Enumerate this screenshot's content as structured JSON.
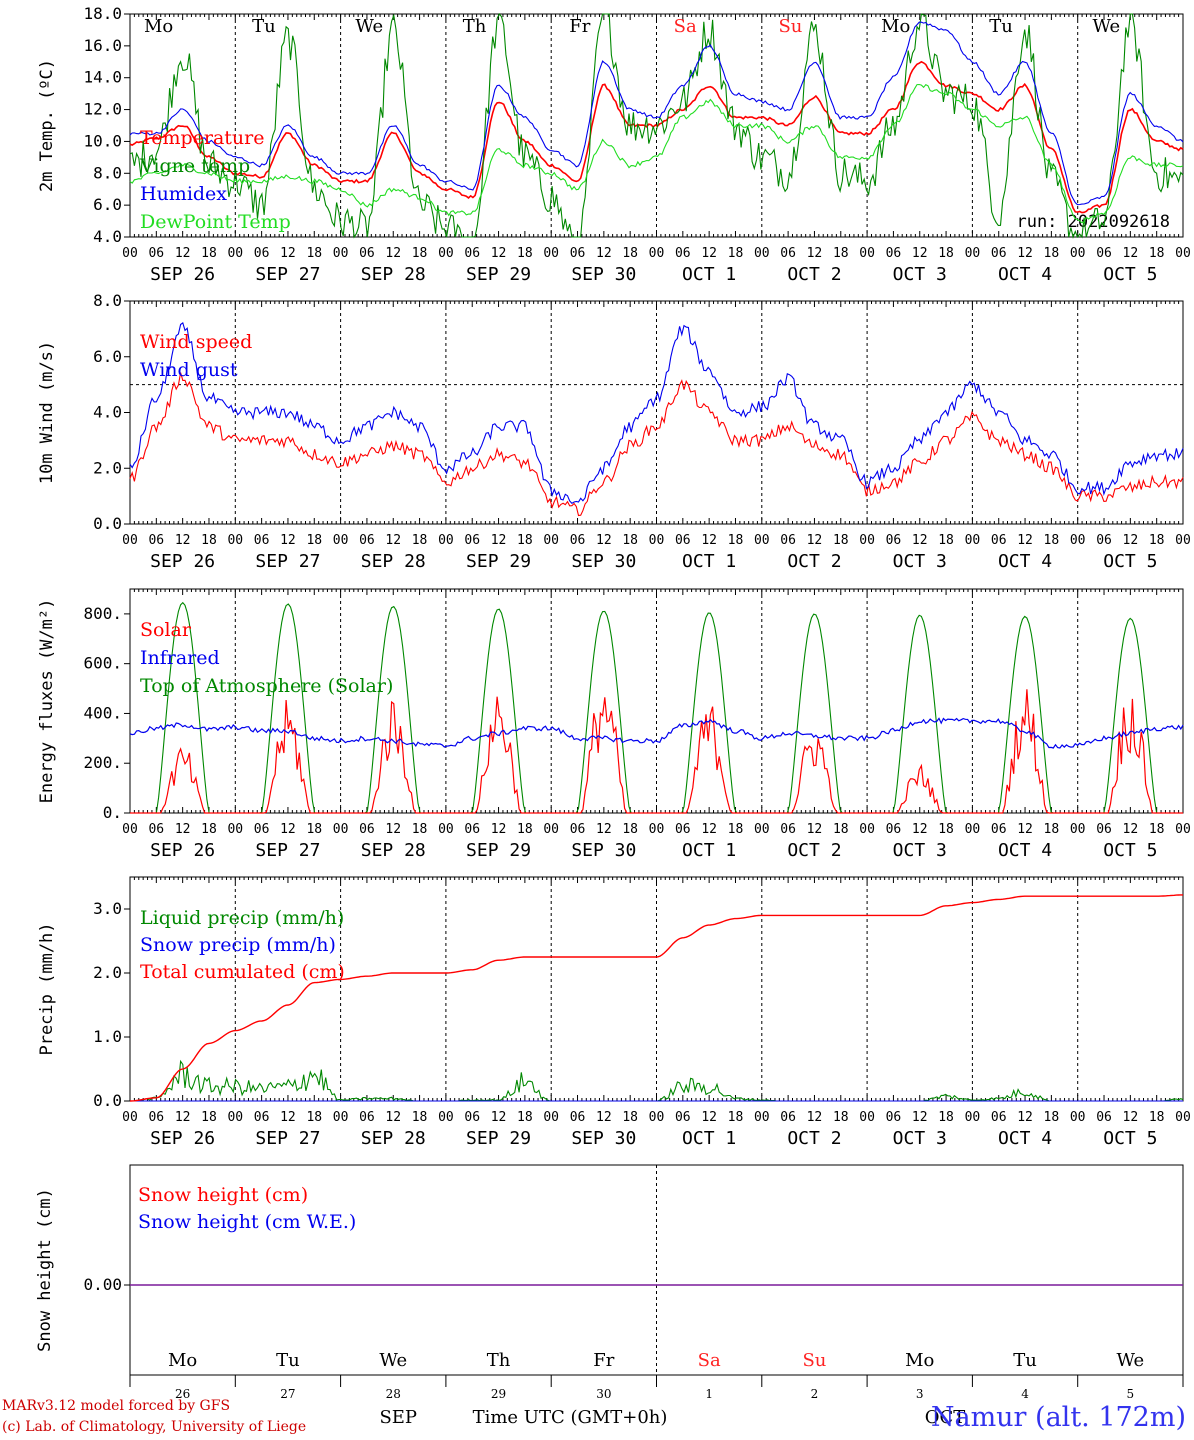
{
  "run_label": "run: 2022092618",
  "footer": {
    "credit_line1": "MARv3.12 model forced by GFS",
    "credit_line2": "(c) Lab. of Climatology, University of Liege",
    "month_label": "SEP",
    "oct_label": "OCT",
    "time_axis_label": "Time UTC (GMT+0h)",
    "station": "Namur (alt. 172m)"
  },
  "hour_ticks": [
    "00",
    "06",
    "12",
    "18"
  ],
  "end_tick": "00",
  "date_labels": [
    "SEP 26",
    "SEP 27",
    "SEP 28",
    "SEP 29",
    "SEP 30",
    "OCT  1",
    "OCT  2",
    "OCT  3",
    "OCT  4",
    "OCT  5"
  ],
  "day_names": [
    "Mo",
    "Tu",
    "We",
    "Th",
    "Fr",
    "Sa",
    "Su",
    "Mo",
    "Tu",
    "We"
  ],
  "day_numbers": [
    "26",
    "27",
    "28",
    "29",
    "30",
    "1",
    "2",
    "3",
    "4",
    "5"
  ],
  "weekend_days": [
    5,
    6
  ],
  "colors": {
    "red": "#ff0000",
    "blue": "#0000ee",
    "green": "#008800",
    "light_green": "#22dd22",
    "purple": "#7a1a9a",
    "weekend": "#ff2222"
  },
  "chart_data": [
    {
      "type": "line",
      "ylabel": "2m Temp. (ºC)",
      "ylim": [
        4,
        18
      ],
      "yticks": [
        "4.0",
        "6.0",
        "8.0",
        "10.0",
        "12.0",
        "14.0",
        "16.0",
        "18.0"
      ],
      "x": [
        "2022-09-26T00",
        "2022-09-26T06",
        "2022-09-26T12",
        "2022-09-26T18",
        "2022-09-27T00",
        "2022-09-27T06",
        "2022-09-27T12",
        "2022-09-27T18",
        "2022-09-28T00",
        "2022-09-28T06",
        "2022-09-28T12",
        "2022-09-28T18",
        "2022-09-29T00",
        "2022-09-29T06",
        "2022-09-29T12",
        "2022-09-29T18",
        "2022-09-30T00",
        "2022-09-30T06",
        "2022-09-30T12",
        "2022-09-30T18",
        "2022-10-01T00",
        "2022-10-01T06",
        "2022-10-01T12",
        "2022-10-01T18",
        "2022-10-02T00",
        "2022-10-02T06",
        "2022-10-02T12",
        "2022-10-02T18",
        "2022-10-03T00",
        "2022-10-03T06",
        "2022-10-03T12",
        "2022-10-03T18",
        "2022-10-04T00",
        "2022-10-04T06",
        "2022-10-04T12",
        "2022-10-04T18",
        "2022-10-05T00",
        "2022-10-05T06",
        "2022-10-05T12",
        "2022-10-05T18",
        "2022-10-06T00"
      ],
      "legend_position": "top-left",
      "series": [
        {
          "name": "Temperature",
          "color": "#ff0000",
          "values": [
            9.8,
            10.2,
            11.0,
            9.0,
            8.0,
            7.8,
            10.5,
            8.5,
            7.5,
            7.5,
            10.5,
            8.0,
            7.0,
            6.5,
            12.5,
            10.0,
            8.5,
            7.5,
            13.5,
            11.0,
            11.0,
            12.0,
            13.5,
            11.5,
            11.5,
            11.0,
            12.8,
            10.5,
            10.5,
            12.0,
            15.0,
            13.5,
            13.0,
            12.0,
            13.5,
            9.5,
            5.5,
            6.0,
            12.0,
            10.0,
            9.5
          ]
        },
        {
          "name": "Vigne temp",
          "color": "#008800",
          "values": [
            8.5,
            9.5,
            15.5,
            8.5,
            7.5,
            6.0,
            16.5,
            7.0,
            5.0,
            4.5,
            17.0,
            6.0,
            4.5,
            3.5,
            17.5,
            9.0,
            6.5,
            3.0,
            18.0,
            11.0,
            11.0,
            12.5,
            17.0,
            11.0,
            9.0,
            8.0,
            17.0,
            8.0,
            7.5,
            11.0,
            17.5,
            13.0,
            12.5,
            5.5,
            17.0,
            7.5,
            4.0,
            5.0,
            17.5,
            8.0,
            7.5
          ]
        },
        {
          "name": "Humidex",
          "color": "#0000ee",
          "values": [
            10.5,
            10.5,
            12.0,
            10.0,
            9.0,
            8.5,
            11.0,
            9.0,
            8.0,
            8.0,
            11.0,
            8.5,
            7.5,
            7.0,
            13.5,
            11.5,
            9.5,
            8.5,
            15.0,
            12.0,
            11.5,
            13.5,
            16.0,
            13.0,
            12.5,
            12.0,
            15.0,
            11.5,
            11.5,
            14.0,
            17.5,
            17.0,
            15.0,
            13.0,
            15.0,
            10.5,
            6.0,
            6.5,
            13.0,
            11.0,
            10.0
          ]
        },
        {
          "name": "DewPoint Temp",
          "color": "#22dd22",
          "values": [
            7.5,
            8.0,
            8.5,
            8.0,
            7.5,
            7.5,
            7.8,
            7.5,
            7.0,
            6.0,
            7.0,
            6.5,
            5.5,
            5.5,
            9.5,
            8.5,
            8.0,
            7.0,
            10.0,
            8.5,
            9.0,
            11.5,
            12.5,
            11.0,
            11.0,
            10.0,
            11.0,
            9.0,
            9.0,
            11.0,
            13.5,
            13.0,
            12.0,
            11.0,
            11.5,
            8.5,
            5.0,
            5.5,
            9.0,
            8.5,
            8.5
          ]
        }
      ]
    },
    {
      "type": "line",
      "ylabel": "10m Wind (m/s)",
      "ylim": [
        0,
        8
      ],
      "yticks": [
        "0.0",
        "2.0",
        "4.0",
        "6.0",
        "8.0"
      ],
      "reference_line": 5.0,
      "legend_position": "top-left",
      "series": [
        {
          "name": "Wind speed",
          "color": "#ff0000",
          "values": [
            1.6,
            3.5,
            5.3,
            3.5,
            3.0,
            3.0,
            3.0,
            2.5,
            2.2,
            2.5,
            2.8,
            2.5,
            1.5,
            2.0,
            2.5,
            2.2,
            0.8,
            0.5,
            1.5,
            2.8,
            3.5,
            5.0,
            4.0,
            3.0,
            3.0,
            3.5,
            2.8,
            2.5,
            1.2,
            1.5,
            2.2,
            3.0,
            3.8,
            3.0,
            2.5,
            2.0,
            1.0,
            1.0,
            1.3,
            1.5,
            1.5
          ]
        },
        {
          "name": "Wind gust",
          "color": "#0000ee",
          "values": [
            2.0,
            4.5,
            7.0,
            4.5,
            4.0,
            4.0,
            4.0,
            3.5,
            3.0,
            3.5,
            4.0,
            3.5,
            2.0,
            2.5,
            3.5,
            3.5,
            1.2,
            0.8,
            2.0,
            3.5,
            4.5,
            7.0,
            5.5,
            4.0,
            4.2,
            5.2,
            3.5,
            3.0,
            1.5,
            2.0,
            3.0,
            4.0,
            5.0,
            4.0,
            3.0,
            2.5,
            1.3,
            1.3,
            2.2,
            2.5,
            2.5
          ]
        }
      ]
    },
    {
      "type": "line",
      "ylabel": "Energy fluxes (W/m²)",
      "ylim": [
        0,
        900
      ],
      "yticks": [
        "0.",
        "200.",
        "400.",
        "600.",
        "800."
      ],
      "legend_position": "top-left",
      "series": [
        {
          "name": "Solar",
          "color": "#ff0000",
          "daily_peak": [
            280,
            460,
            480,
            530,
            580,
            460,
            380,
            200,
            530,
            530
          ]
        },
        {
          "name": "Infrared",
          "color": "#0000ee",
          "values": [
            320,
            340,
            355,
            335,
            345,
            330,
            330,
            300,
            290,
            300,
            290,
            275,
            270,
            300,
            320,
            340,
            340,
            300,
            300,
            290,
            290,
            350,
            370,
            330,
            300,
            320,
            310,
            300,
            300,
            330,
            370,
            370,
            370,
            370,
            330,
            270,
            270,
            300,
            320,
            340,
            345
          ]
        },
        {
          "name": "Top of Atmosphere (Solar)",
          "color": "#008800",
          "daily_peak": [
            845,
            840,
            830,
            820,
            812,
            805,
            800,
            795,
            790,
            782
          ]
        }
      ]
    },
    {
      "type": "line",
      "ylabel": "Precip (mm/h)",
      "ylim": [
        0,
        3.5
      ],
      "yticks": [
        "0.0",
        "1.0",
        "2.0",
        "3.0"
      ],
      "legend_position": "top-left",
      "series": [
        {
          "name": "Liquid precip (mm/h)",
          "color": "#008800",
          "values": [
            0,
            0.05,
            0.55,
            0.3,
            0.3,
            0.25,
            0.3,
            0.55,
            0.02,
            0.05,
            0.05,
            0,
            0,
            0.02,
            0.02,
            0.4,
            0,
            0,
            0,
            0,
            0,
            0.3,
            0.3,
            0.05,
            0.02,
            0,
            0,
            0,
            0,
            0,
            0,
            0.1,
            0.02,
            0.05,
            0.2,
            0,
            0,
            0,
            0,
            0,
            0.05
          ]
        },
        {
          "name": "Snow precip (mm/h)",
          "color": "#0000ee",
          "values": [
            0,
            0,
            0,
            0,
            0,
            0,
            0,
            0,
            0,
            0,
            0,
            0,
            0,
            0,
            0,
            0,
            0,
            0,
            0,
            0,
            0,
            0,
            0,
            0,
            0,
            0,
            0,
            0,
            0,
            0,
            0,
            0,
            0,
            0,
            0,
            0,
            0,
            0,
            0,
            0,
            0
          ]
        },
        {
          "name": "Total cumulated (cm)",
          "color": "#ff0000",
          "values": [
            0,
            0.05,
            0.5,
            0.9,
            1.1,
            1.25,
            1.5,
            1.85,
            1.9,
            1.95,
            2.0,
            2.0,
            2.0,
            2.05,
            2.2,
            2.25,
            2.25,
            2.25,
            2.25,
            2.25,
            2.25,
            2.55,
            2.75,
            2.85,
            2.9,
            2.9,
            2.9,
            2.9,
            2.9,
            2.9,
            2.9,
            3.05,
            3.1,
            3.15,
            3.2,
            3.2,
            3.2,
            3.2,
            3.2,
            3.2,
            3.22
          ]
        }
      ]
    },
    {
      "type": "line",
      "ylabel": "Snow height (cm)",
      "yticks": [
        "0.00"
      ],
      "legend_position": "top-left",
      "series": [
        {
          "name": "Snow height (cm)",
          "color": "#ff0000",
          "values": [
            0,
            0,
            0,
            0,
            0,
            0,
            0,
            0,
            0,
            0,
            0,
            0,
            0,
            0,
            0,
            0,
            0,
            0,
            0,
            0,
            0,
            0,
            0,
            0,
            0,
            0,
            0,
            0,
            0,
            0,
            0,
            0,
            0,
            0,
            0,
            0,
            0,
            0,
            0,
            0,
            0
          ]
        },
        {
          "name": "Snow height (cm W.E.)",
          "color": "#0000ee",
          "values": [
            0,
            0,
            0,
            0,
            0,
            0,
            0,
            0,
            0,
            0,
            0,
            0,
            0,
            0,
            0,
            0,
            0,
            0,
            0,
            0,
            0,
            0,
            0,
            0,
            0,
            0,
            0,
            0,
            0,
            0,
            0,
            0,
            0,
            0,
            0,
            0,
            0,
            0,
            0,
            0,
            0
          ]
        }
      ]
    }
  ]
}
